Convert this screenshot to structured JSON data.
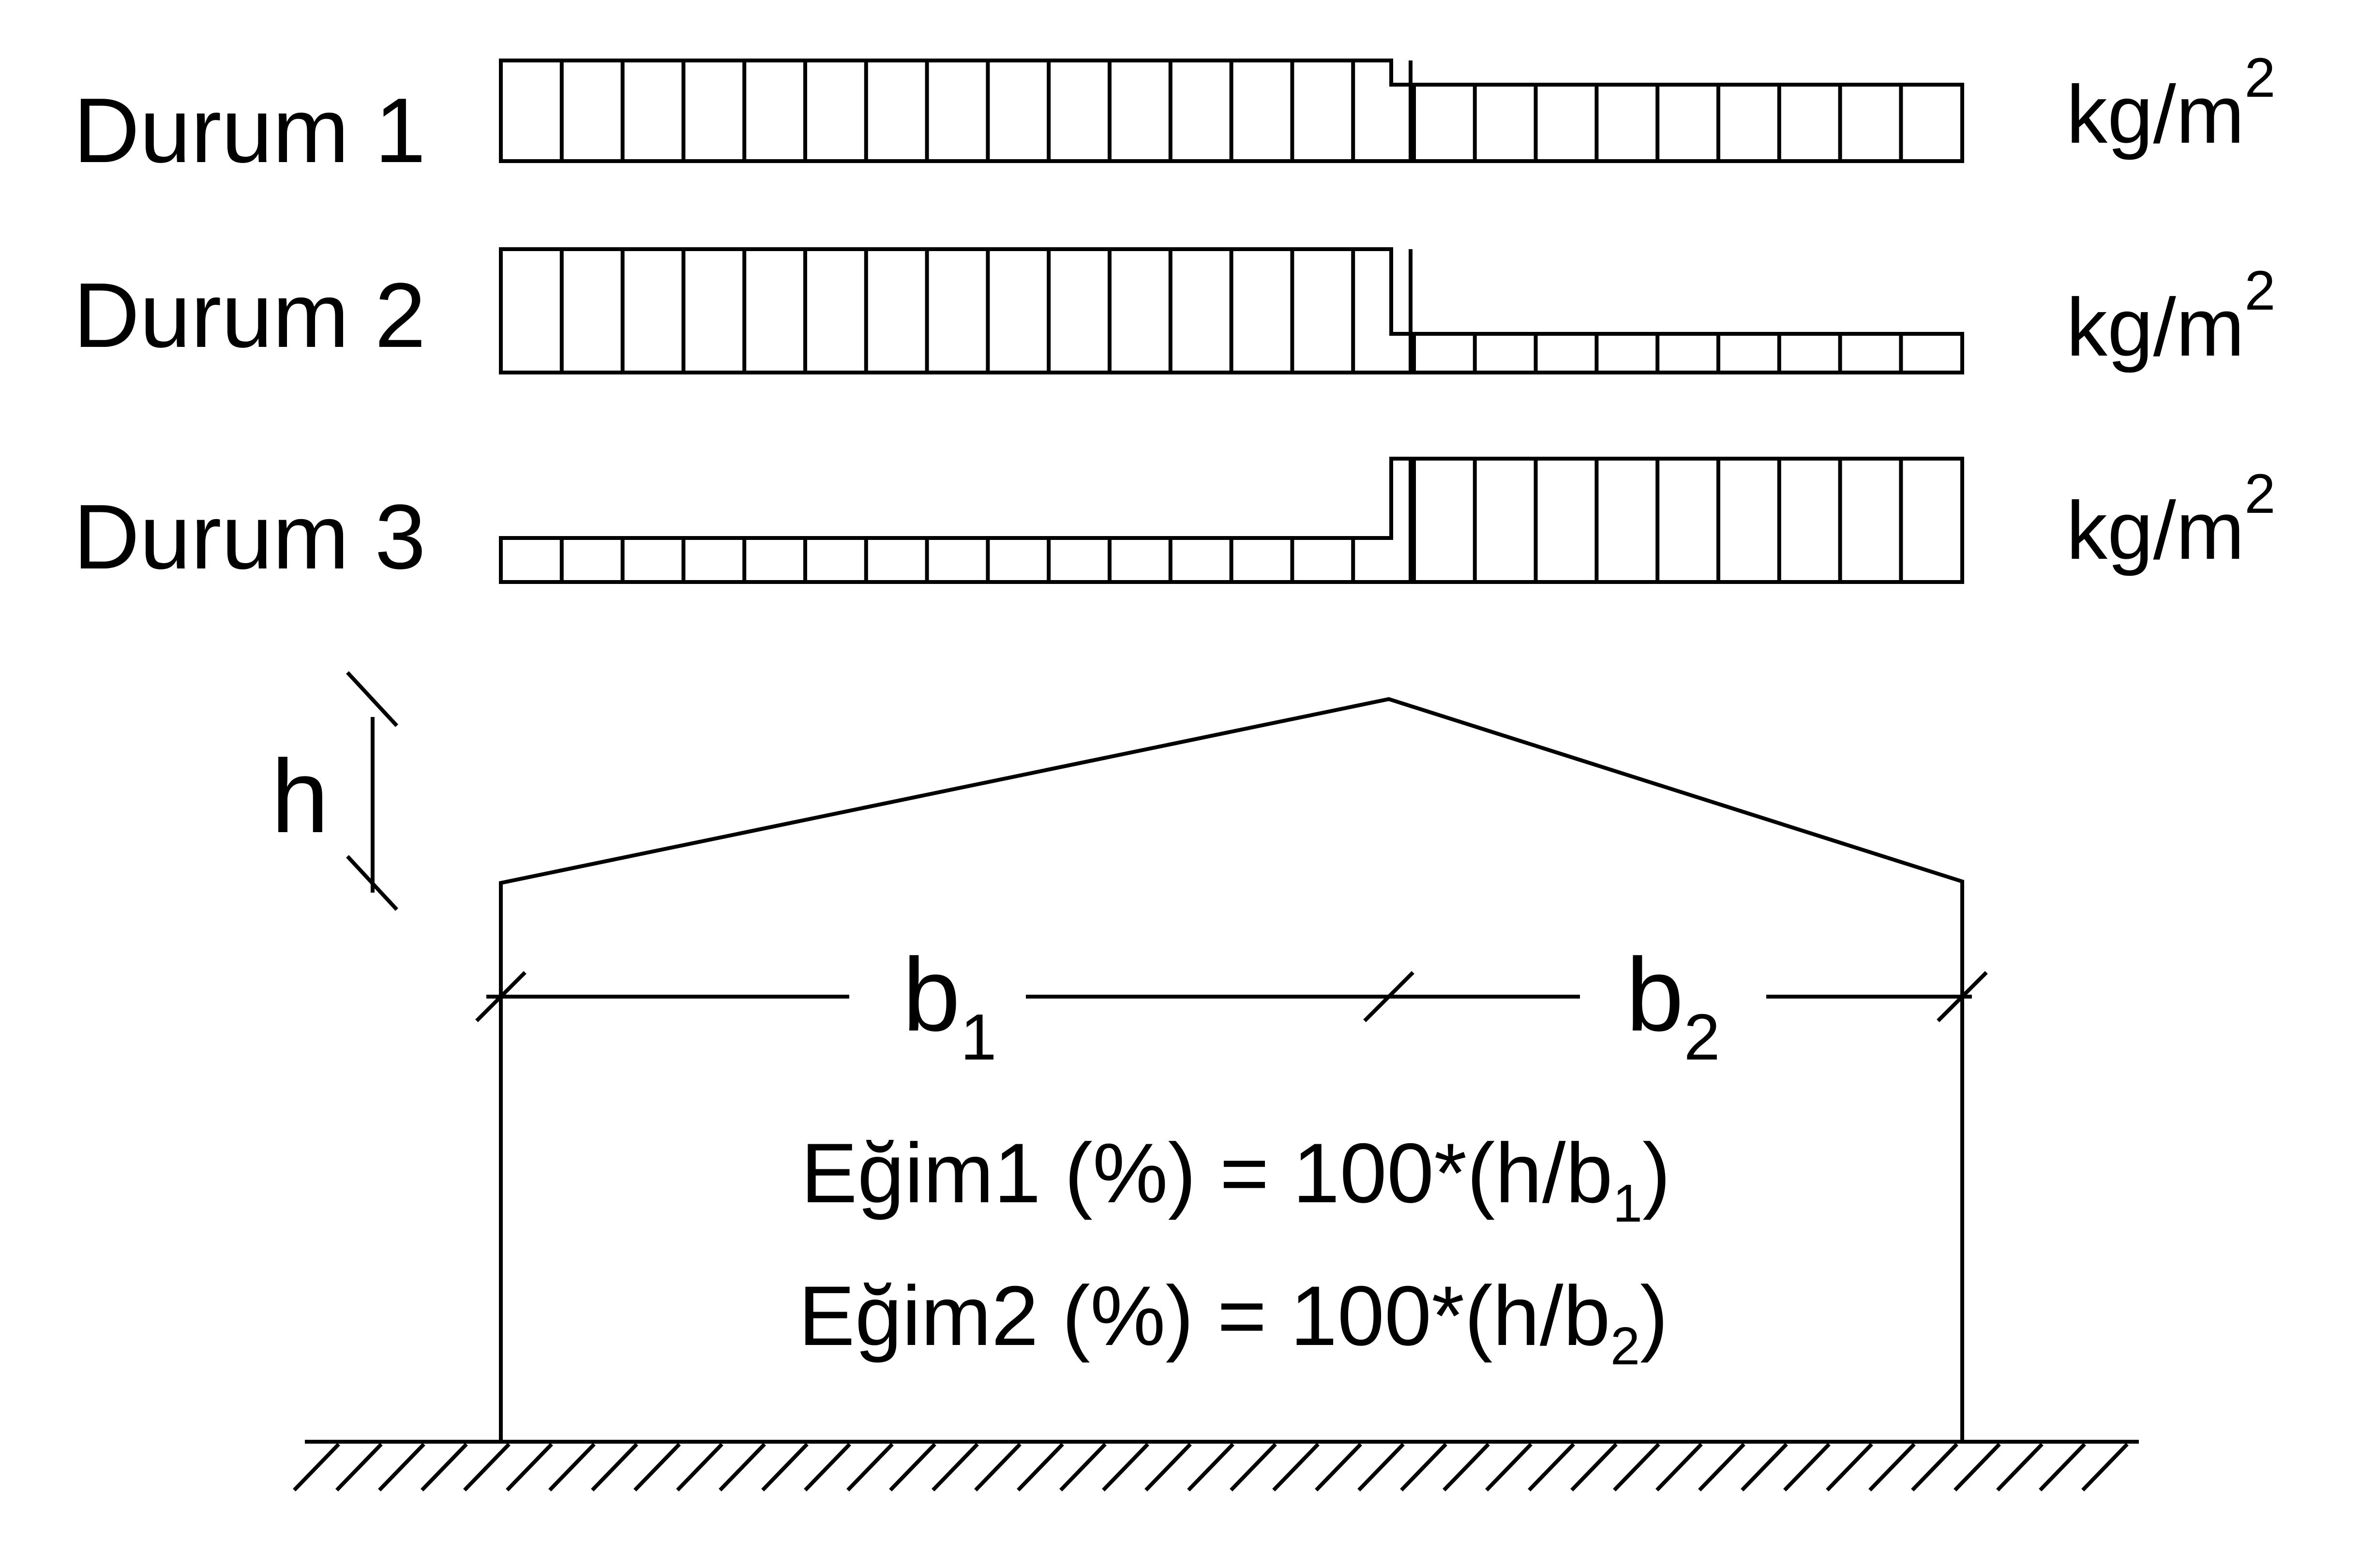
{
  "load_cases": [
    {
      "label": "Durum 1",
      "unit_base": "kg/m",
      "unit_exp": "2"
    },
    {
      "label": "Durum 2",
      "unit_base": "kg/m",
      "unit_exp": "2"
    },
    {
      "label": "Durum 3",
      "unit_base": "kg/m",
      "unit_exp": "2"
    }
  ],
  "frame": {
    "height_label": "h",
    "span1": {
      "base": "b",
      "sub": "1"
    },
    "span2": {
      "base": "b",
      "sub": "2"
    }
  },
  "formulas": [
    {
      "prefix": "Eğim1 (%) = 100*(h/b",
      "sub": "1",
      "suffix": ")"
    },
    {
      "prefix": "Eğim2 (%) = 100*(h/b",
      "sub": "2",
      "suffix": ")"
    }
  ],
  "colors": {
    "line": "#000000",
    "background": "#ffffff"
  }
}
